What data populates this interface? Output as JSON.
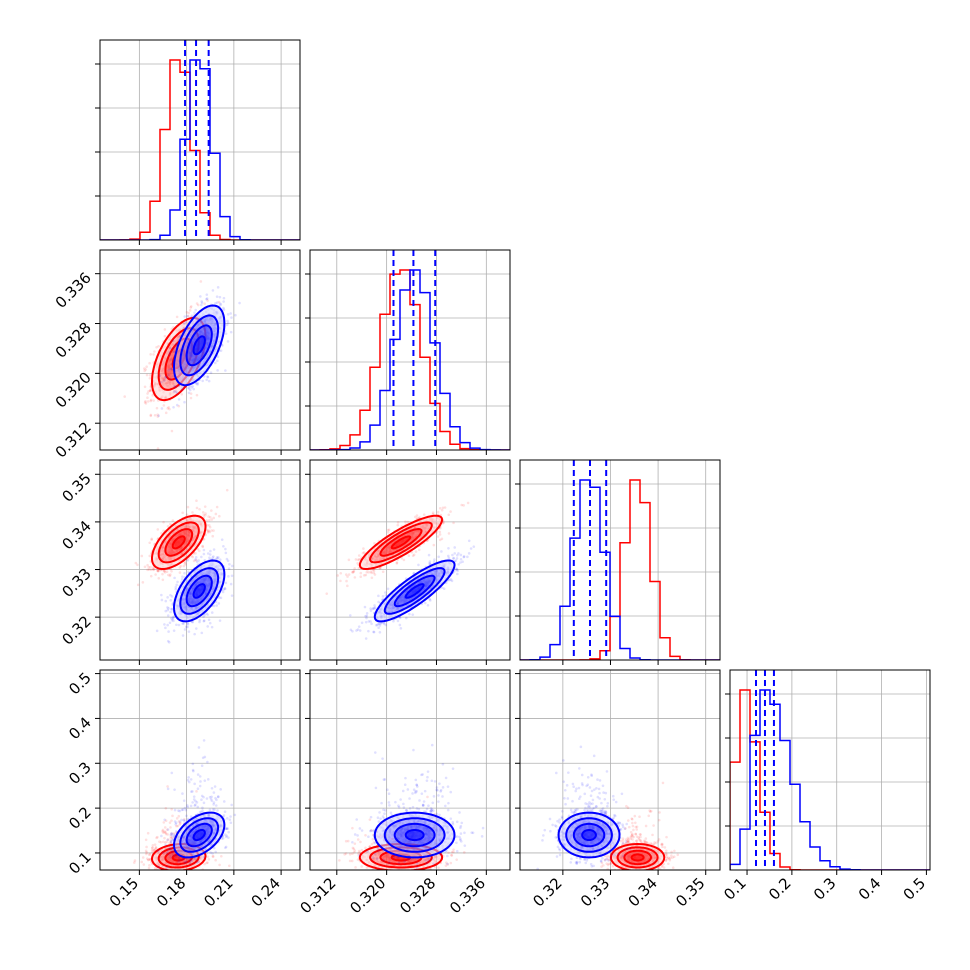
{
  "chart_data": {
    "type": "corner",
    "title": "",
    "parameters": [
      {
        "axis_range": [
          0.125,
          0.252
        ],
        "ticks": [
          "0.15",
          "0.18",
          "0.21",
          "0.24"
        ],
        "tick_values": [
          0.15,
          0.18,
          0.21,
          0.24
        ]
      },
      {
        "axis_range": [
          0.3077,
          0.3398
        ],
        "ticks": [
          "0.312",
          "0.320",
          "0.328",
          "0.336"
        ],
        "tick_values": [
          0.312,
          0.32,
          0.328,
          0.336
        ]
      },
      {
        "axis_range": [
          0.311,
          0.353
        ],
        "ticks": [
          "0.32",
          "0.33",
          "0.34",
          "0.35"
        ],
        "tick_values": [
          0.32,
          0.33,
          0.34,
          0.35
        ]
      },
      {
        "axis_range": [
          0.062,
          0.508
        ],
        "ticks": [
          "0.1",
          "0.2",
          "0.3",
          "0.4",
          "0.5"
        ],
        "tick_values": [
          0.1,
          0.2,
          0.3,
          0.4,
          0.5
        ]
      }
    ],
    "series": [
      {
        "color": "#ff0000",
        "means": [
          0.175,
          0.3223,
          0.3357,
          0.09
        ],
        "sigmas": [
          0.0085,
          0.0033,
          0.0028,
          0.015
        ],
        "correlations": {
          "1-0": 0.55,
          "2-0": 0.6,
          "2-1": 0.85,
          "3-0": 0.1,
          "3-1": 0.0,
          "3-2": 0.0
        }
      },
      {
        "color": "#0000ff",
        "means": [
          0.188,
          0.3245,
          0.3255,
          0.14
        ],
        "sigmas": [
          0.008,
          0.0032,
          0.0032,
          0.025
        ],
        "correlations": {
          "1-0": 0.55,
          "2-0": 0.55,
          "2-1": 0.85,
          "3-0": 0.45,
          "3-1": 0.0,
          "3-2": 0.0
        }
      }
    ],
    "quantile_lines": {
      "color": "#0000ff",
      "values": [
        [
          0.179,
          0.186,
          0.194
        ],
        [
          0.3211,
          0.3243,
          0.3278
        ],
        [
          0.3223,
          0.3257,
          0.3291
        ],
        [
          0.12,
          0.14,
          0.16
        ]
      ]
    },
    "grid": true,
    "legend": "none"
  }
}
